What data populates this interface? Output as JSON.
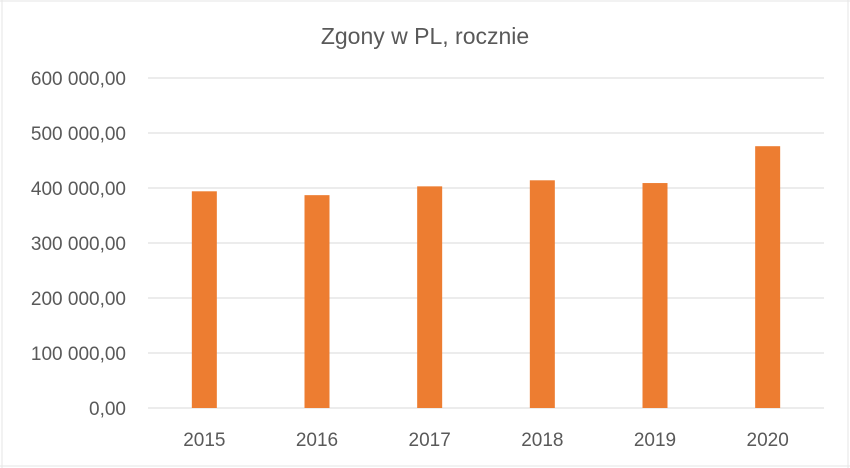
{
  "chart_data": {
    "type": "bar",
    "title": "Zgony w PL, rocznie",
    "xlabel": "",
    "ylabel": "",
    "categories": [
      "2015",
      "2016",
      "2017",
      "2018",
      "2019",
      "2020"
    ],
    "values": [
      394000,
      387000,
      403000,
      414000,
      409000,
      476000
    ],
    "ylim": [
      0,
      600000
    ],
    "yticks": [
      0,
      100000,
      200000,
      300000,
      400000,
      500000,
      600000
    ],
    "ytick_labels": [
      "0,00",
      "100 000,00",
      "200 000,00",
      "300 000,00",
      "400 000,00",
      "500 000,00",
      "600 000,00"
    ],
    "grid": true,
    "legend": "none",
    "colors": {
      "bar": "#ed7d31",
      "grid": "#d9d9d9",
      "text": "#595959"
    }
  }
}
